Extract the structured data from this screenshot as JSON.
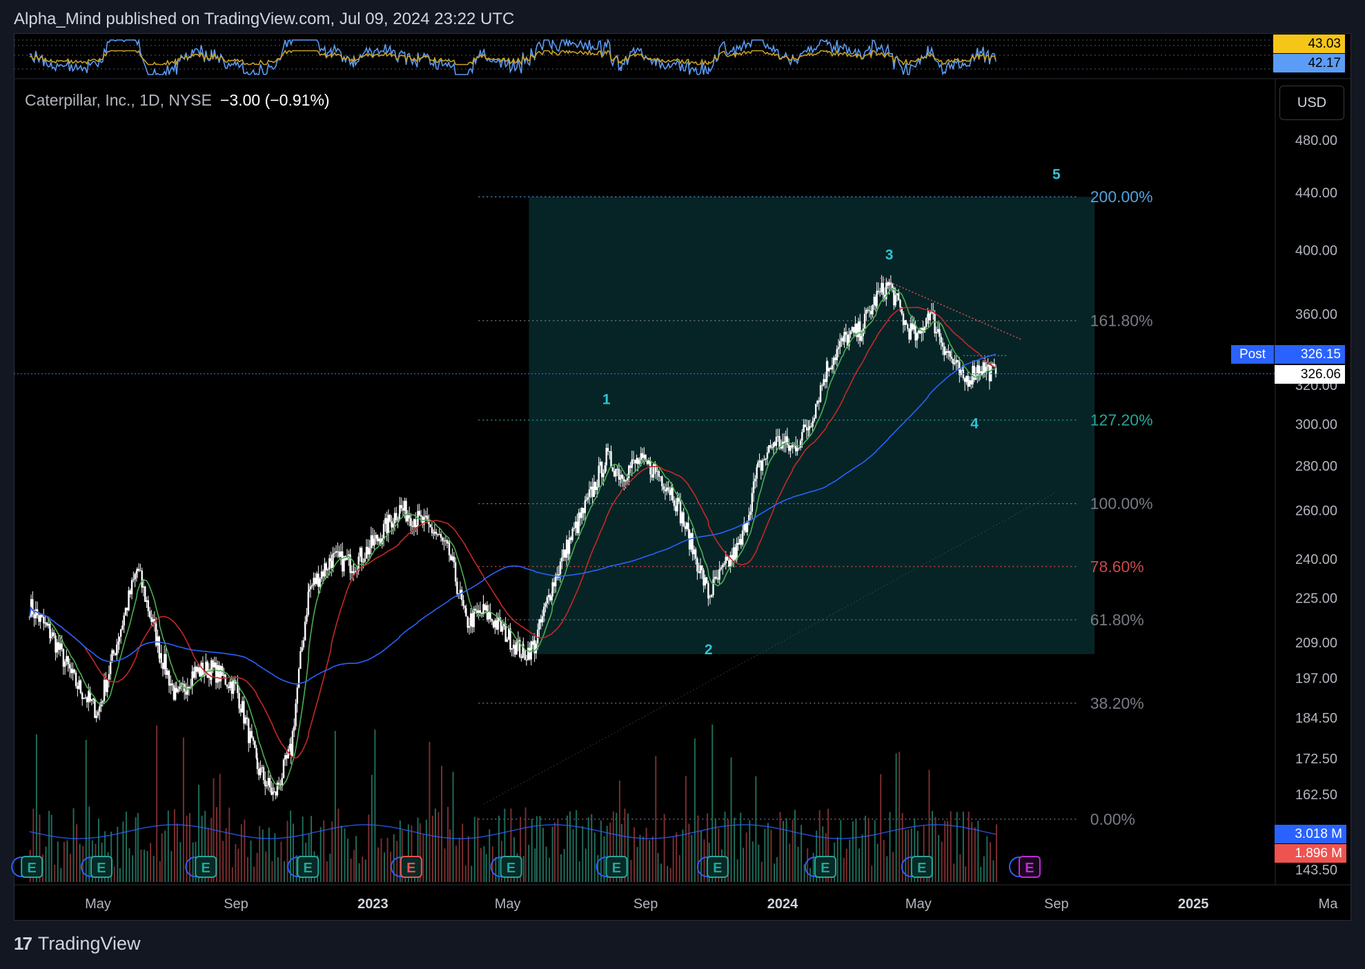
{
  "header": {
    "publisher": "Alpha_Mind published on TradingView.com, Jul 09, 2024 23:22 UTC"
  },
  "legend": {
    "symbol": "Caterpillar, Inc., 1D, NYSE",
    "change": "−3.00 (−0.91%)"
  },
  "currency_button": "USD",
  "footer": {
    "brand": "TradingView"
  },
  "colors": {
    "fib_box": "#062426",
    "ma_fast": "#4caf50",
    "ma_mid": "#c62828",
    "ma_slow": "#2962ff",
    "up": "#26a69a",
    "down": "#ef5350"
  },
  "tags": {
    "rsi_a": "43.03",
    "rsi_b": "42.17",
    "post_label": "Post",
    "post_price": "326.15",
    "last_price": "326.06",
    "vol_a": "3.018 M",
    "vol_b": "1.896 M"
  },
  "earnings_marker": "E",
  "chart_data": {
    "type": "candlestick",
    "y_scale": "log",
    "price_axis_ticks": [
      "480.00",
      "440.00",
      "400.00",
      "360.00",
      "320.00",
      "300.00",
      "280.00",
      "260.00",
      "240.00",
      "225.00",
      "209.00",
      "197.00",
      "184.50",
      "172.50",
      "162.50",
      "143.50"
    ],
    "time_axis_ticks": [
      "May",
      "Sep",
      "2023",
      "May",
      "Sep",
      "2024",
      "May",
      "Sep",
      "2025",
      "Ma"
    ],
    "fibonacci_levels": [
      {
        "label": "200.00%",
        "color": "#4fa3e0"
      },
      {
        "label": "161.80%",
        "color": "#787b86"
      },
      {
        "label": "127.20%",
        "color": "#26a69a"
      },
      {
        "label": "100.00%",
        "color": "#787b86"
      },
      {
        "label": "78.60%",
        "color": "#c94a4a"
      },
      {
        "label": "61.80%",
        "color": "#787b86"
      },
      {
        "label": "38.20%",
        "color": "#787b86"
      },
      {
        "label": "0.00%",
        "color": "#787b86"
      }
    ],
    "wave_labels": [
      "1",
      "2",
      "3",
      "4",
      "5"
    ],
    "price_path": [
      [
        "2022-03-01",
        222
      ],
      [
        "2022-03-20",
        212
      ],
      [
        "2022-04-10",
        196
      ],
      [
        "2022-05-01",
        186
      ],
      [
        "2022-05-20",
        212
      ],
      [
        "2022-06-05",
        236
      ],
      [
        "2022-06-25",
        206
      ],
      [
        "2022-07-10",
        190
      ],
      [
        "2022-07-25",
        199
      ],
      [
        "2022-08-10",
        200
      ],
      [
        "2022-09-01",
        194
      ],
      [
        "2022-09-20",
        170
      ],
      [
        "2022-10-05",
        162
      ],
      [
        "2022-10-20",
        175
      ],
      [
        "2022-11-05",
        228
      ],
      [
        "2022-11-25",
        240
      ],
      [
        "2022-12-15",
        238
      ],
      [
        "2023-01-05",
        248
      ],
      [
        "2023-01-25",
        261
      ],
      [
        "2023-02-10",
        256
      ],
      [
        "2023-02-25",
        251
      ],
      [
        "2023-03-10",
        242
      ],
      [
        "2023-03-25",
        216
      ],
      [
        "2023-04-10",
        220
      ],
      [
        "2023-04-25",
        214
      ],
      [
        "2023-05-15",
        205
      ],
      [
        "2023-05-25",
        208
      ],
      [
        "2023-06-10",
        230
      ],
      [
        "2023-06-25",
        247
      ],
      [
        "2023-07-10",
        262
      ],
      [
        "2023-07-28",
        284
      ],
      [
        "2023-08-10",
        276
      ],
      [
        "2023-08-25",
        282
      ],
      [
        "2023-09-10",
        278
      ],
      [
        "2023-09-25",
        268
      ],
      [
        "2023-10-10",
        248
      ],
      [
        "2023-10-27",
        226
      ],
      [
        "2023-11-10",
        236
      ],
      [
        "2023-11-25",
        246
      ],
      [
        "2023-12-10",
        278
      ],
      [
        "2023-12-25",
        292
      ],
      [
        "2024-01-10",
        288
      ],
      [
        "2024-01-25",
        300
      ],
      [
        "2024-02-10",
        330
      ],
      [
        "2024-02-25",
        345
      ],
      [
        "2024-03-10",
        350
      ],
      [
        "2024-03-25",
        370
      ],
      [
        "2024-04-05",
        378
      ],
      [
        "2024-04-20",
        353
      ],
      [
        "2024-05-01",
        345
      ],
      [
        "2024-05-10",
        362
      ],
      [
        "2024-05-25",
        340
      ],
      [
        "2024-06-10",
        322
      ],
      [
        "2024-06-25",
        330
      ],
      [
        "2024-07-09",
        326
      ]
    ],
    "last_price": 326.06
  }
}
